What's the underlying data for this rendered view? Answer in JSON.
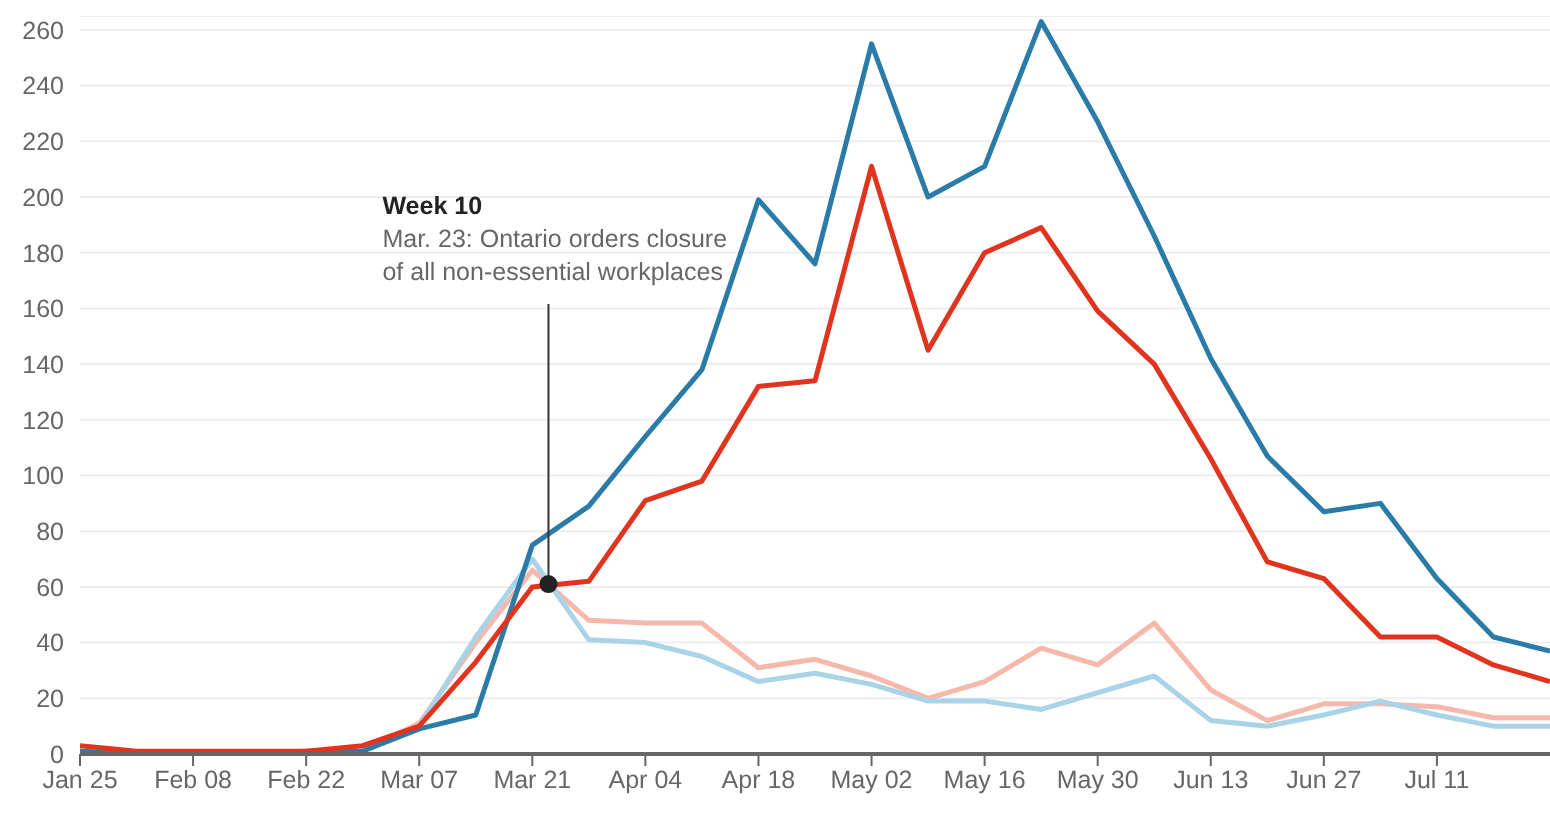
{
  "chart_data": {
    "type": "line",
    "x": [
      "--01-25",
      "--02-01",
      "--02-08",
      "--02-15",
      "--02-22",
      "--02-29",
      "--03-07",
      "--03-14",
      "--03-21",
      "--03-28",
      "--04-04",
      "--04-11",
      "--04-18",
      "--04-25",
      "--05-02",
      "--05-09",
      "--05-16",
      "--05-23",
      "--05-30",
      "--06-06",
      "--06-13",
      "--06-20",
      "--06-27",
      "--07-04",
      "--07-11",
      "--07-18",
      "--07-25"
    ],
    "series": [
      {
        "color": "#f6b8ab",
        "values": [
          1,
          0,
          0,
          0,
          0,
          1,
          11,
          40,
          66,
          48,
          47,
          47,
          31,
          34,
          28,
          20,
          26,
          38,
          32,
          47,
          23,
          12,
          18,
          18,
          17,
          13,
          13
        ]
      },
      {
        "color": "#a9d3e6",
        "values": [
          1,
          0,
          0,
          0,
          0,
          1,
          10,
          42,
          70,
          41,
          40,
          35,
          26,
          29,
          25,
          19,
          19,
          16,
          22,
          28,
          12,
          10,
          14,
          19,
          14,
          10,
          10
        ]
      },
      {
        "color": "#2a7ba8",
        "values": [
          1,
          0,
          0,
          0,
          1,
          1,
          9,
          14,
          75,
          89,
          114,
          138,
          199,
          176,
          255,
          200,
          211,
          263,
          227,
          186,
          142,
          107,
          87,
          90,
          63,
          42,
          37
        ]
      },
      {
        "color": "#e0341f",
        "values": [
          3,
          1,
          1,
          1,
          1,
          3,
          10,
          33,
          60,
          62,
          91,
          98,
          132,
          134,
          211,
          145,
          180,
          189,
          159,
          140,
          106,
          69,
          63,
          42,
          42,
          32,
          26
        ]
      }
    ],
    "xlim": [
      "--01-25",
      "--07-25"
    ],
    "xticks": [
      {
        "value": "--01-25",
        "label": "Jan 25"
      },
      {
        "value": "--02-08",
        "label": "Feb 08"
      },
      {
        "value": "--02-22",
        "label": "Feb 22"
      },
      {
        "value": "--03-07",
        "label": "Mar 07"
      },
      {
        "value": "--03-21",
        "label": "Mar 21"
      },
      {
        "value": "--04-04",
        "label": "Apr 04"
      },
      {
        "value": "--04-18",
        "label": "Apr 18"
      },
      {
        "value": "--05-02",
        "label": "May 02"
      },
      {
        "value": "--05-16",
        "label": "May 16"
      },
      {
        "value": "--05-30",
        "label": "May 30"
      },
      {
        "value": "--06-13",
        "label": "Jun 13"
      },
      {
        "value": "--06-27",
        "label": "Jun 27"
      },
      {
        "value": "--07-11",
        "label": "Jul 11"
      }
    ],
    "ylim": [
      0,
      265
    ],
    "yticks": [
      0,
      20,
      40,
      60,
      80,
      100,
      120,
      140,
      160,
      180,
      200,
      220,
      240,
      260
    ],
    "grid": "y",
    "legend": false,
    "marker": "none",
    "line_style": "solid",
    "annotations": [
      {
        "text": "Week 10\nMar. 23: Ontario orders closure\nof all non-essential workplaces",
        "x": "--03-23",
        "y": 61
      }
    ]
  }
}
